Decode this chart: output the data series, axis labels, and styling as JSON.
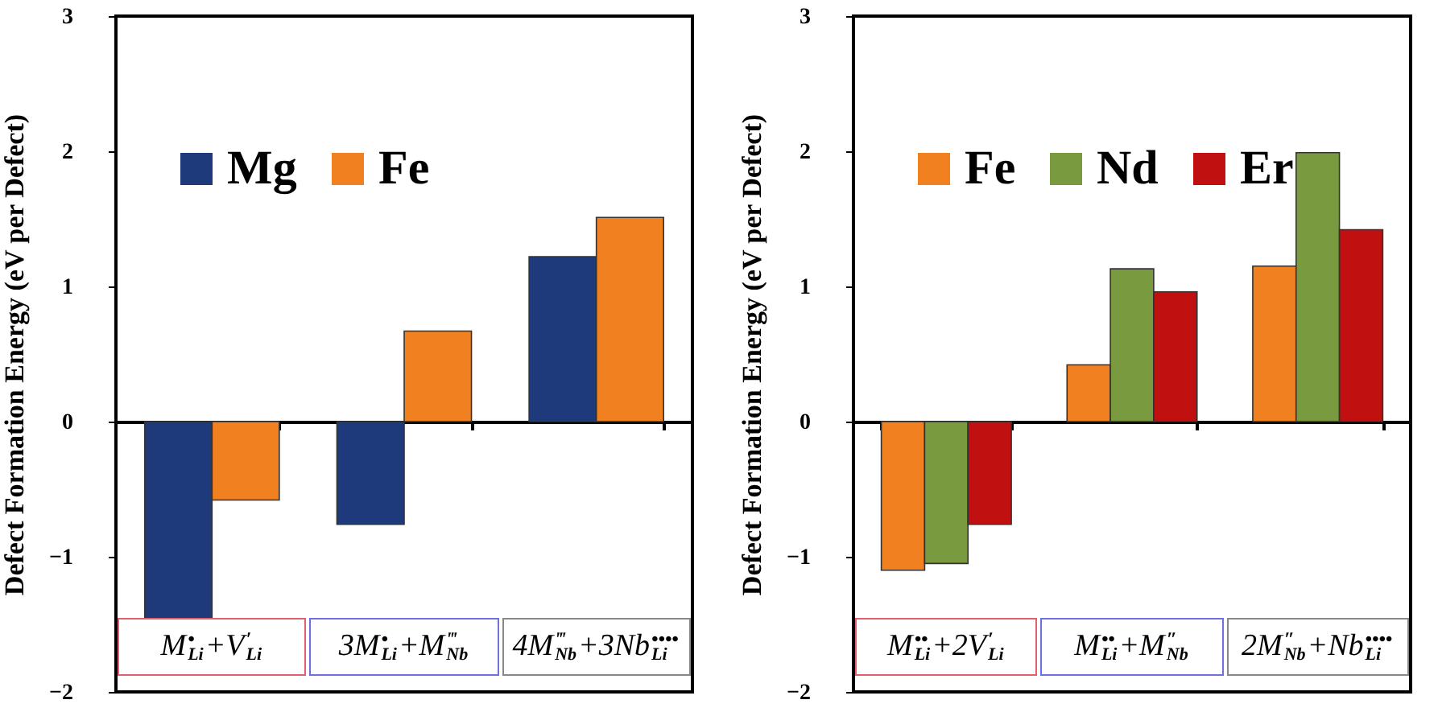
{
  "chart_data": [
    {
      "type": "bar",
      "ylabel": "Defect Formation Energy (eV per Defect)",
      "categories": [
        "M$^{•}$$_{Li}$+V$^{′}$$_{Li}$",
        "3M$^{•}$$_{Li}$+M$^{‴}$$_{Nb}$",
        "4M$^{‴}$$_{Nb}$+3Nb$^{••••}$$_{Li}$"
      ],
      "series": [
        {
          "name": "Mg",
          "color": "#1f3a7a",
          "values": [
            -1.47,
            -0.76,
            1.22
          ]
        },
        {
          "name": "Fe",
          "color": "#f08020",
          "values": [
            -0.58,
            0.67,
            1.51
          ]
        }
      ],
      "ylim": [
        -2,
        3
      ],
      "yticks": [
        -2,
        -1,
        0,
        1,
        2,
        3
      ],
      "legend": "top left"
    },
    {
      "type": "bar",
      "ylabel": "Defect Formation Energy (eV per Defect)",
      "categories": [
        "M$^{••}$$_{Li}$+2V$^{′}$$_{Li}$",
        "M$^{••}$$_{Li}$+M$^{″}$$_{Nb}$",
        "2M$^{″}$$_{Nb}$+Nb$^{••••}$$_{Li}$"
      ],
      "series": [
        {
          "name": "Fe",
          "color": "#f08020",
          "values": [
            -1.1,
            0.42,
            1.15
          ]
        },
        {
          "name": "Nd",
          "color": "#7a9a40",
          "values": [
            -1.05,
            1.13,
            1.99
          ]
        },
        {
          "name": "Er",
          "color": "#c01010",
          "values": [
            -0.76,
            0.96,
            1.42
          ]
        }
      ],
      "ylim": [
        -2,
        3
      ],
      "yticks": [
        -2,
        -1,
        0,
        1,
        2,
        3
      ],
      "legend": "top left"
    }
  ]
}
